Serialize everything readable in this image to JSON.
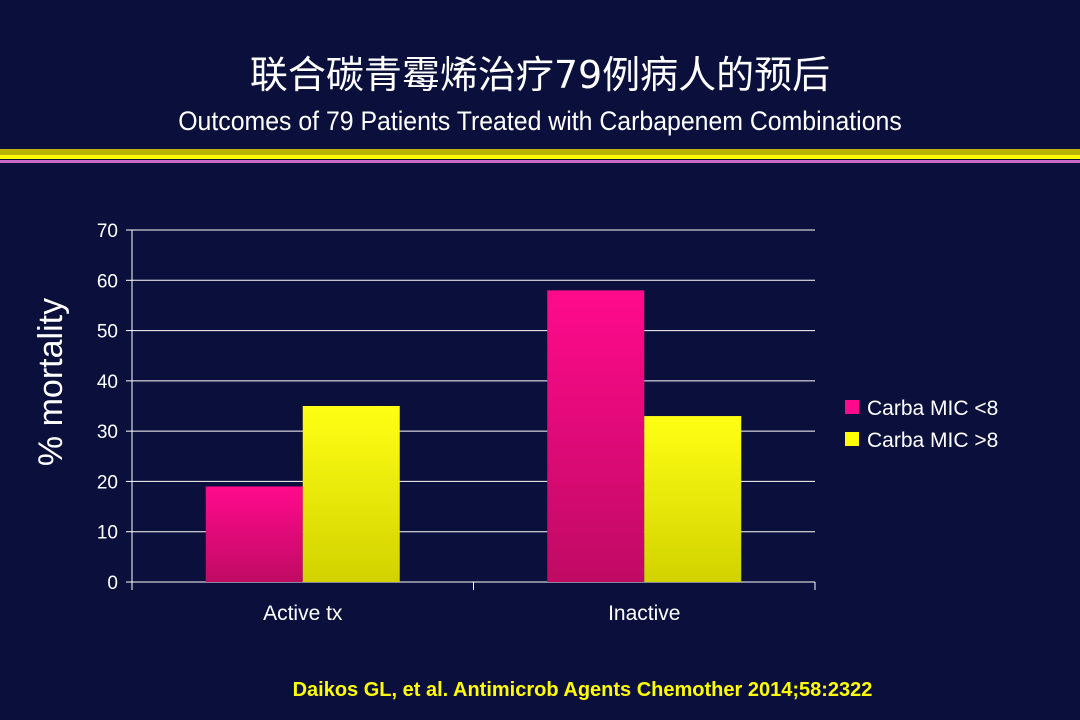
{
  "title_cn": "联合碳青霉烯治疗79例病人的预后",
  "title_en": "Outcomes of 79 Patients Treated with Carbapenem Combinations",
  "citation": "Daikos GL, et al. Antimicrob Agents Chemother 2014;58:2322",
  "colors": {
    "background": "#0b0f3c",
    "series_1": "#ff0a8c",
    "series_2": "#ffff00",
    "gridline": "#ffffff",
    "citation": "#ffff00"
  },
  "chart_data": {
    "type": "bar",
    "categories": [
      "Active tx",
      "Inactive"
    ],
    "series": [
      {
        "name": "Carba MIC <8",
        "values": [
          19,
          58
        ]
      },
      {
        "name": "Carba MIC >8",
        "values": [
          35,
          33
        ]
      }
    ],
    "ylabel": "% mortality",
    "ylim": [
      0,
      70
    ],
    "yticks": [
      0,
      10,
      20,
      30,
      40,
      50,
      60,
      70
    ],
    "grid": true,
    "legend": "right"
  }
}
